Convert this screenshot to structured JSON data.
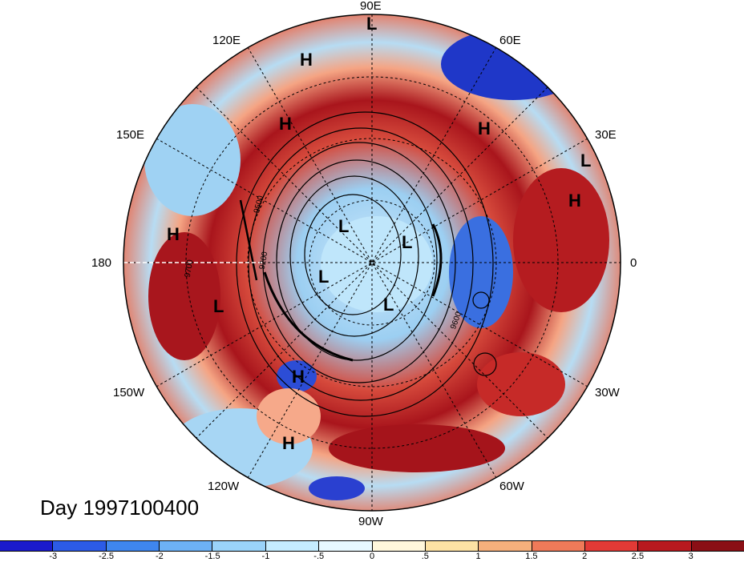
{
  "title": "Day 1997100400",
  "longitude_labels": [
    "90E",
    "60E",
    "30E",
    "0",
    "30W",
    "60W",
    "90W",
    "120W",
    "150W",
    "180",
    "150E",
    "120E"
  ],
  "pressure_systems": [
    {
      "symbol": "L"
    },
    {
      "symbol": "H"
    },
    {
      "symbol": "H"
    },
    {
      "symbol": "H"
    },
    {
      "symbol": "L"
    },
    {
      "symbol": "H"
    },
    {
      "symbol": "H"
    },
    {
      "symbol": "L"
    },
    {
      "symbol": "L"
    },
    {
      "symbol": "L"
    },
    {
      "symbol": "L"
    },
    {
      "symbol": "L"
    },
    {
      "symbol": "H"
    },
    {
      "symbol": "H"
    }
  ],
  "contour_labels": [
    "9500",
    "9200",
    "9600",
    "9700"
  ],
  "colorbar": {
    "ticks": [
      "-3",
      "-2.5",
      "-2",
      "-1.5",
      "-1",
      "-.5",
      "0",
      ".5",
      "1",
      "1.5",
      "2",
      "2.5",
      "3"
    ],
    "colors": [
      "#1a1acc",
      "#2c5be6",
      "#3f86ee",
      "#6db1f5",
      "#9ad3fa",
      "#c5ecff",
      "#e8f8ff",
      "#fff7dc",
      "#fde2a4",
      "#f6b07c",
      "#ef7a59",
      "#e23a36",
      "#b8191f",
      "#8a0f15"
    ]
  }
}
